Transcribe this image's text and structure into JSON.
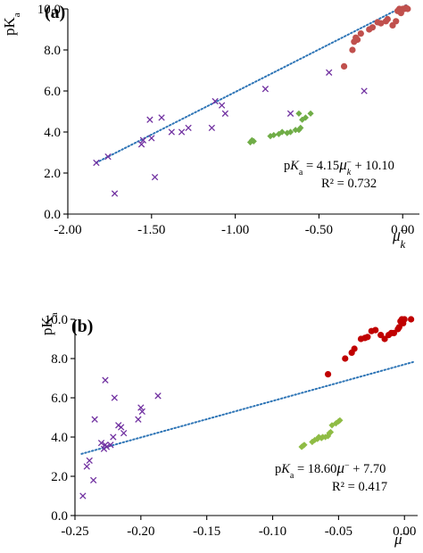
{
  "chart_data": [
    {
      "type": "scatter",
      "panel_label": "(a)",
      "ylabel": "pK",
      "ylabel_sub": "a",
      "xlabel": "μ",
      "xlabel_sub": "k",
      "xlabel_sup": "−",
      "xlim": [
        -2.0,
        0.1
      ],
      "ylim": [
        0.0,
        10.0
      ],
      "xticks": [
        "-2.00",
        "-1.50",
        "-1.00",
        "-0.50",
        "0.00"
      ],
      "xtick_values": [
        -2.0,
        -1.5,
        -1.0,
        -0.5,
        0.0
      ],
      "yticks": [
        "0.0",
        "2.0",
        "4.0",
        "6.0",
        "8.0",
        "10.0"
      ],
      "ytick_values": [
        0,
        2,
        4,
        6,
        8,
        10
      ],
      "equation": {
        "lhs_main": "p",
        "lhs_k": "K",
        "lhs_sub": "a",
        "rhs_coef": " = 4.15",
        "rhs_mu": "μ",
        "rhs_mu_sub": "k",
        "rhs_mu_sup": "−",
        "rhs_const": " + 10.10"
      },
      "r2": "R² = 0.732",
      "trendline": {
        "slope": 4.15,
        "intercept": 10.1,
        "x_range": [
          -1.83,
          0.03
        ],
        "color": "#2e75b6"
      },
      "series": [
        {
          "marker": "x",
          "color": "#7030a0",
          "x": [
            -1.83,
            -1.76,
            -1.72,
            -1.56,
            -1.55,
            -1.51,
            -1.5,
            -1.48,
            -1.44,
            -1.38,
            -1.32,
            -1.28,
            -1.14,
            -1.12,
            -1.08,
            -1.06,
            -0.82,
            -0.44,
            -0.23,
            -0.67
          ],
          "y": [
            2.5,
            2.8,
            1.0,
            3.4,
            3.6,
            4.6,
            3.7,
            1.8,
            4.7,
            4.0,
            4.0,
            4.2,
            4.2,
            5.5,
            5.3,
            4.9,
            6.1,
            6.9,
            6.0,
            4.9
          ]
        },
        {
          "marker": "diamond",
          "color": "#70ad47",
          "x": [
            -0.91,
            -0.9,
            -0.89,
            -0.79,
            -0.77,
            -0.74,
            -0.72,
            -0.69,
            -0.67,
            -0.64,
            -0.62,
            -0.61,
            -0.6,
            -0.62,
            -0.58,
            -0.55
          ],
          "y": [
            3.5,
            3.6,
            3.55,
            3.8,
            3.85,
            3.9,
            4.0,
            3.95,
            4.0,
            4.1,
            4.1,
            4.2,
            4.6,
            4.9,
            4.7,
            4.9
          ]
        },
        {
          "marker": "circle",
          "color": "#c0504d",
          "x": [
            -0.35,
            -0.3,
            -0.29,
            -0.28,
            -0.27,
            -0.25,
            -0.2,
            -0.18,
            -0.15,
            -0.13,
            -0.1,
            -0.09,
            -0.06,
            -0.04,
            -0.03,
            -0.02,
            -0.01,
            0.0,
            0.01,
            0.02,
            0.03
          ],
          "y": [
            7.2,
            8.0,
            8.4,
            8.6,
            8.5,
            8.8,
            9.0,
            9.1,
            9.35,
            9.3,
            9.4,
            9.5,
            9.2,
            9.4,
            9.9,
            10.0,
            9.8,
            10.0,
            10.0,
            10.05,
            10.0
          ]
        }
      ]
    },
    {
      "type": "scatter",
      "panel_label": "(b)",
      "ylabel": "pK",
      "ylabel_sub": "a",
      "xlabel": "μ",
      "xlabel_sub": "",
      "xlabel_sup": "−",
      "xlim": [
        -0.25,
        0.01
      ],
      "ylim": [
        0.0,
        10.0
      ],
      "xticks": [
        "-0.25",
        "-0.20",
        "-0.15",
        "-0.10",
        "-0.05",
        "0.00"
      ],
      "xtick_values": [
        -0.25,
        -0.2,
        -0.15,
        -0.1,
        -0.05,
        0.0
      ],
      "yticks": [
        "0.0",
        "2.0",
        "4.0",
        "6.0",
        "8.0",
        "10.0"
      ],
      "ytick_values": [
        0,
        2,
        4,
        6,
        8,
        10
      ],
      "equation": {
        "lhs_main": "p",
        "lhs_k": "K",
        "lhs_sub": "a",
        "rhs_coef": " = 18.60",
        "rhs_mu": "μ",
        "rhs_mu_sub": "",
        "rhs_mu_sup": "−",
        "rhs_const": " + 7.70"
      },
      "r2": "R² = 0.417",
      "trendline": {
        "slope": 18.6,
        "intercept": 7.7,
        "x_range": [
          -0.245,
          0.007
        ],
        "color": "#2e75b6"
      },
      "series": [
        {
          "marker": "x",
          "color": "#7030a0",
          "x": [
            -0.244,
            -0.241,
            -0.239,
            -0.236,
            -0.235,
            -0.228,
            -0.227,
            -0.226,
            -0.223,
            -0.221,
            -0.22,
            -0.217,
            -0.215,
            -0.213,
            -0.202,
            -0.2,
            -0.199,
            -0.187,
            -0.227,
            -0.23
          ],
          "y": [
            1.0,
            2.5,
            2.8,
            1.8,
            4.9,
            3.4,
            6.9,
            3.5,
            3.6,
            4.0,
            6.0,
            4.6,
            4.5,
            4.2,
            4.9,
            5.5,
            5.3,
            6.1,
            3.6,
            3.7
          ]
        },
        {
          "marker": "diamond",
          "color": "#8fbc45",
          "x": [
            -0.078,
            -0.077,
            -0.076,
            -0.07,
            -0.068,
            -0.066,
            -0.065,
            -0.063,
            -0.062,
            -0.06,
            -0.058,
            -0.057,
            -0.056,
            -0.055,
            -0.052,
            -0.05,
            -0.049
          ],
          "y": [
            3.5,
            3.55,
            3.6,
            3.75,
            3.85,
            3.9,
            4.0,
            3.95,
            4.0,
            4.0,
            4.05,
            4.2,
            4.25,
            4.6,
            4.7,
            4.8,
            4.85
          ]
        },
        {
          "marker": "circle",
          "color": "#c00000",
          "x": [
            -0.058,
            -0.045,
            -0.04,
            -0.038,
            -0.033,
            -0.03,
            -0.028,
            -0.025,
            -0.022,
            -0.018,
            -0.015,
            -0.012,
            -0.01,
            -0.008,
            -0.005,
            -0.004,
            -0.003,
            -0.002,
            -0.001,
            0.0,
            0.005
          ],
          "y": [
            7.2,
            8.0,
            8.3,
            8.5,
            9.0,
            9.05,
            9.1,
            9.4,
            9.45,
            9.2,
            9.0,
            9.2,
            9.3,
            9.3,
            9.5,
            9.6,
            9.9,
            10.0,
            9.8,
            10.0,
            10.0
          ]
        }
      ]
    }
  ]
}
